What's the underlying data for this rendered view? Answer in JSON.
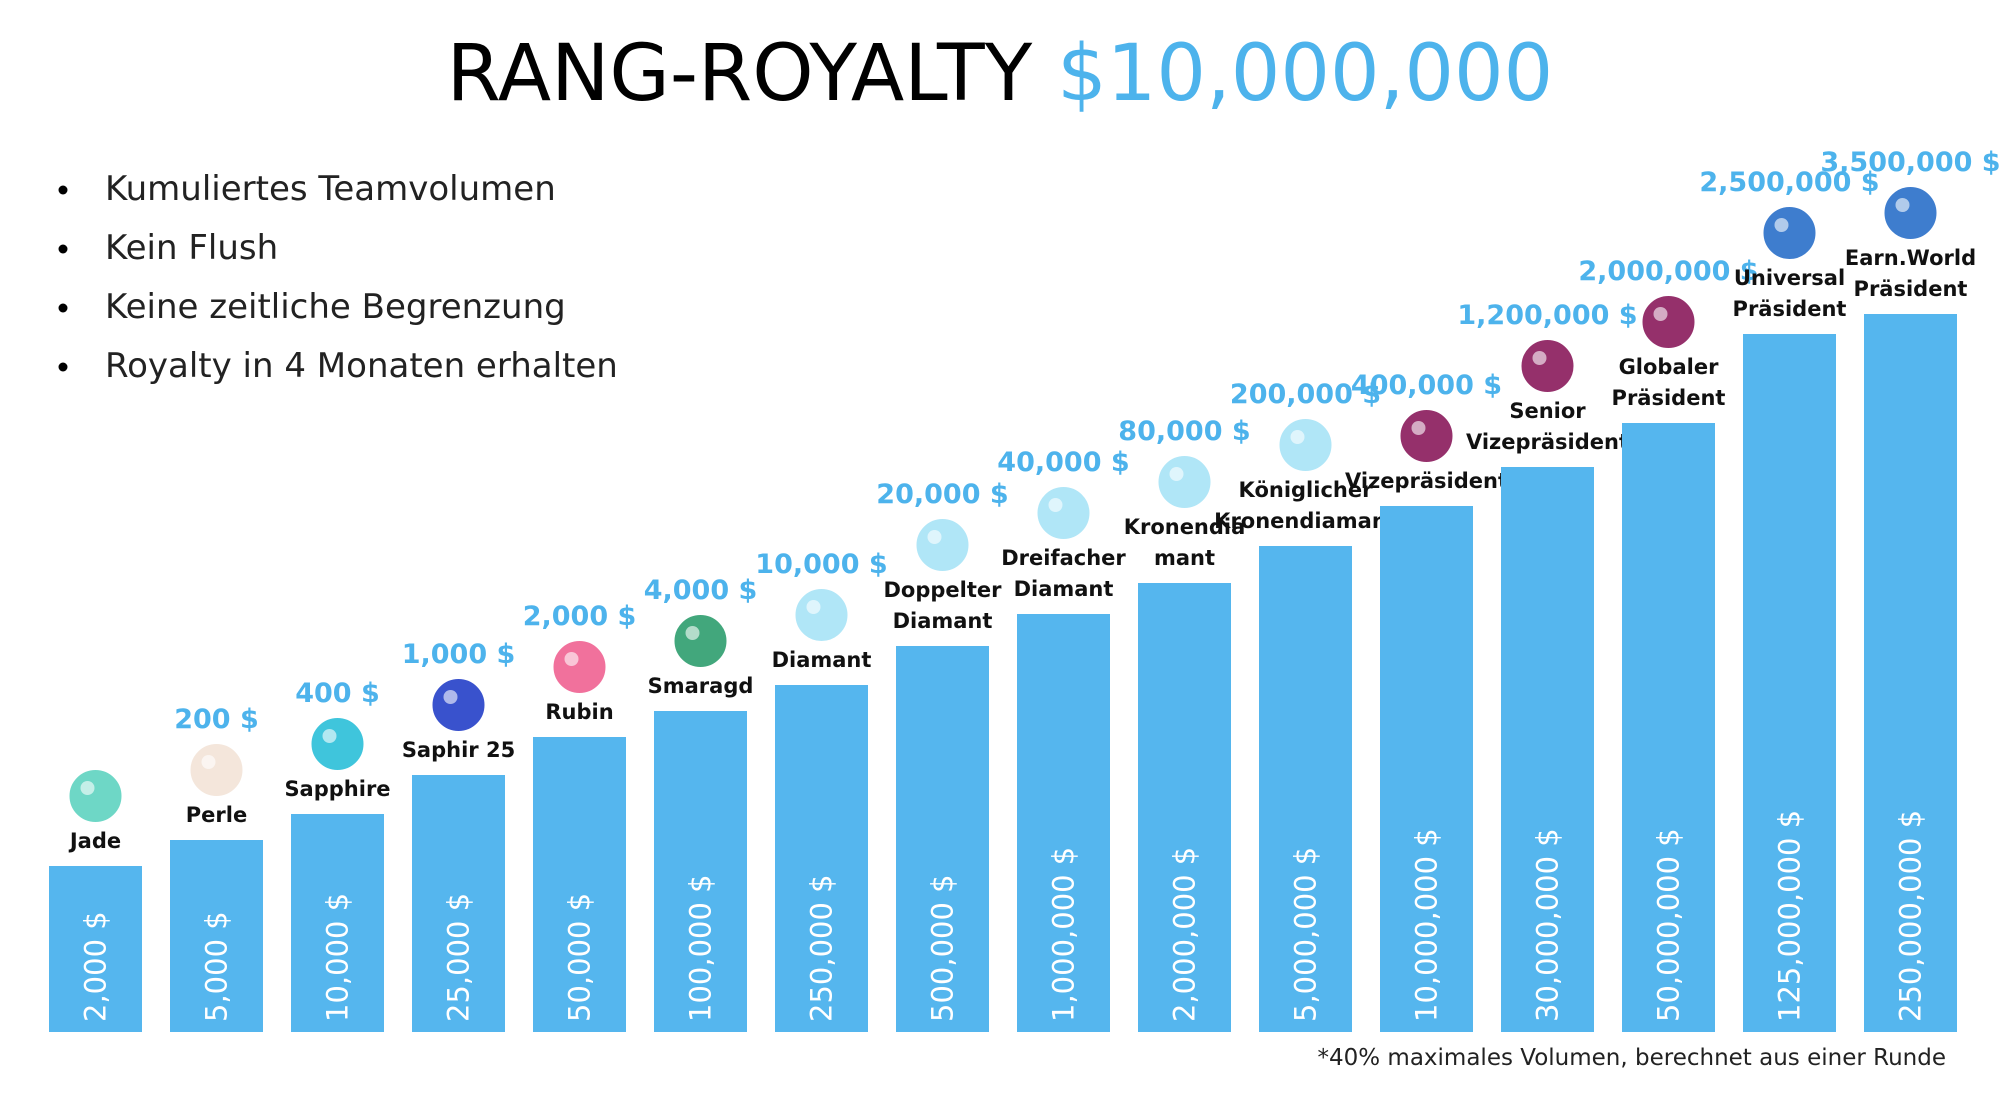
{
  "header": {
    "title": "RANG-ROYALTY",
    "highlight": "$10,000,000"
  },
  "bullets": [
    "Kumuliertes Teamvolumen",
    "Kein Flush",
    "Keine zeitliche Begrenzung",
    "Royalty in 4 Monaten erhalten"
  ],
  "ranks": [
    {
      "name": [
        "Jade"
      ],
      "volume": "2,000 $",
      "reward": null
    },
    {
      "name": [
        "Perle"
      ],
      "volume": "5,000 $",
      "reward": "200 $"
    },
    {
      "name": [
        "Sapphire"
      ],
      "volume": "10,000 $",
      "reward": "400 $"
    },
    {
      "name": [
        "Saphir 25"
      ],
      "volume": "25,000 $",
      "reward": "1,000 $"
    },
    {
      "name": [
        "Rubin"
      ],
      "volume": "50,000 $",
      "reward": "2,000 $"
    },
    {
      "name": [
        "Smaragd"
      ],
      "volume": "100,000 $",
      "reward": "4,000 $"
    },
    {
      "name": [
        "Diamant"
      ],
      "volume": "250,000 $",
      "reward": "10,000 $"
    },
    {
      "name": [
        "Doppelter",
        "Diamant"
      ],
      "volume": "500,000 $",
      "reward": "20,000 $"
    },
    {
      "name": [
        "Dreifacher",
        "Diamant"
      ],
      "volume": "1,000,000 $",
      "reward": "40,000 $"
    },
    {
      "name": [
        "Kronendia",
        "mant"
      ],
      "volume": "2,000,000 $",
      "reward": "80,000 $"
    },
    {
      "name": [
        "Königlicher",
        "Kronendiamant"
      ],
      "volume": "5,000,000 $",
      "reward": "200,000 $"
    },
    {
      "name": [
        "Vizepräsident"
      ],
      "volume": "10,000,000 $",
      "reward": "400,000 $"
    },
    {
      "name": [
        "Senior",
        "Vizepräsident"
      ],
      "volume": "30,000,000 $",
      "reward": "1,200,000 $"
    },
    {
      "name": [
        "Globaler",
        "Präsident"
      ],
      "volume": "50,000,000 $",
      "reward": "2,000,000 $"
    },
    {
      "name": [
        "Universal",
        "Präsident"
      ],
      "volume": "125,000,000 $",
      "reward": "2,500,000 $"
    },
    {
      "name": [
        "Earn.World",
        "Präsident"
      ],
      "volume": "250,000,000 $",
      "reward": "3,500,000 $"
    }
  ],
  "footnote": "*40% maximales Volumen, berechnet aus einer Runde"
}
